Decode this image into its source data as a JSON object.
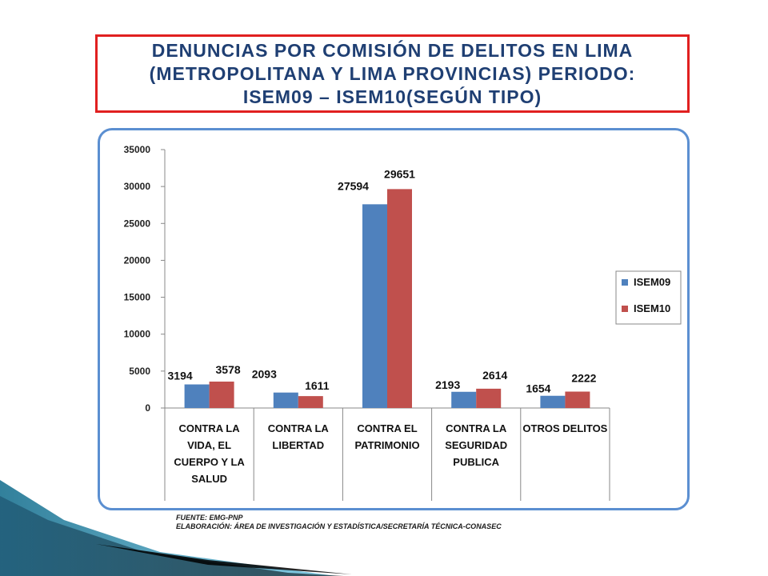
{
  "title": {
    "line1": "DENUNCIAS POR COMISIÓN DE DELITOS EN LIMA",
    "line2": "(METROPOLITANA Y LIMA PROVINCIAS) PERIODO:",
    "line3": "ISEM09 – ISEM10(SEGÚN TIPO)"
  },
  "chart_data": {
    "type": "bar",
    "title": "",
    "xlabel": "",
    "ylabel": "",
    "ylim": [
      0,
      35000
    ],
    "yticks": [
      "0",
      "5000",
      "10000",
      "15000",
      "20000",
      "25000",
      "30000",
      "35000"
    ],
    "categories": [
      [
        "CONTRA LA",
        "VIDA, EL",
        "CUERPO Y LA",
        "SALUD"
      ],
      [
        "CONTRA LA",
        "LIBERTAD"
      ],
      [
        "CONTRA EL",
        "PATRIMONIO"
      ],
      [
        "CONTRA LA",
        "SEGURIDAD",
        "PUBLICA"
      ],
      [
        "OTROS DELITOS"
      ]
    ],
    "series": [
      {
        "name": "ISEM09",
        "color": "#4f81bd",
        "values": [
          3194,
          2093,
          27594,
          2193,
          1654
        ]
      },
      {
        "name": "ISEM10",
        "color": "#c0504d",
        "values": [
          3578,
          1611,
          29651,
          2614,
          2222
        ]
      }
    ],
    "legend_position": "right",
    "grid": false
  },
  "source": {
    "line1": "FUENTE: EMG-PNP",
    "line2": "ELABORACIÓN: ÁREA DE INVESTIGACIÓN Y ESTADÍSTICA/SECRETARÍA TÉCNICA-CONASEC"
  },
  "colors": {
    "title_text": "#1f3f73",
    "title_border": "#e02020",
    "frame_border": "#5b8fd1"
  }
}
